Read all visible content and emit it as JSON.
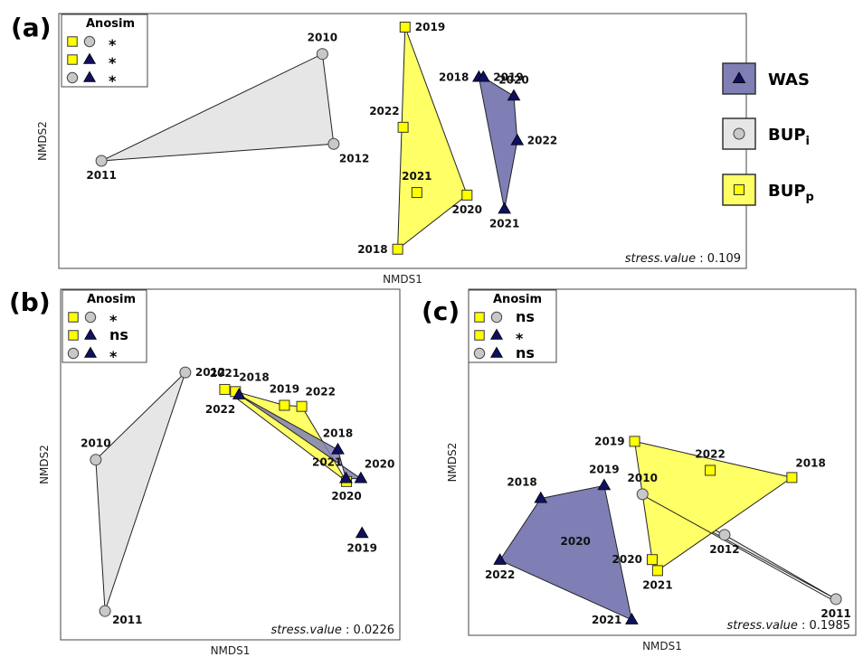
{
  "colors": {
    "WAS": "#7f7fb6",
    "BUP_i": "#e6e6e6",
    "BUP_p": "#ffff66",
    "triangle": "#101060",
    "circle": "#c8c8c8",
    "square": "#ffff00"
  },
  "legend": {
    "items": [
      {
        "label": "WAS",
        "marker": "triangle"
      },
      {
        "label": "BUP",
        "sub": "i",
        "marker": "circle"
      },
      {
        "label": "BUP",
        "sub": "p",
        "marker": "square"
      }
    ]
  },
  "chart_data": [
    {
      "type": "scatter",
      "panel_label": "(a)",
      "xlabel": "NMDS1",
      "ylabel": "NMDS2",
      "stress_label": "stress.value",
      "stress_value": "0.109",
      "xlim": [
        0,
        100
      ],
      "ylim": [
        0,
        100
      ],
      "anosim": {
        "title": "Anosim",
        "rows": [
          {
            "markers": [
              "square",
              "circle"
            ],
            "sig": "*"
          },
          {
            "markers": [
              "square",
              "triangle"
            ],
            "sig": "*"
          },
          {
            "markers": [
              "circle",
              "triangle"
            ],
            "sig": "*"
          }
        ]
      },
      "series": [
        {
          "name": "BUPi",
          "marker": "circle",
          "hull": [
            0,
            2,
            1
          ],
          "points": [
            {
              "year": "2010",
              "x": 48.6,
              "y": 88.4,
              "label_pos": "above"
            },
            {
              "year": "2011",
              "x": 3.7,
              "y": 42.2,
              "label_pos": "below"
            },
            {
              "year": "2012",
              "x": 50.9,
              "y": 49.5,
              "label_pos": "below-right"
            }
          ]
        },
        {
          "name": "BUPp",
          "marker": "square",
          "hull": [
            0,
            3,
            4
          ],
          "points": [
            {
              "year": "2019",
              "x": 65.4,
              "y": 100.0,
              "label_pos": "right"
            },
            {
              "year": "2022",
              "x": 65.0,
              "y": 56.7,
              "label_pos": "above-left"
            },
            {
              "year": "2021",
              "x": 67.8,
              "y": 28.5,
              "label_pos": "above"
            },
            {
              "year": "2020",
              "x": 78.0,
              "y": 27.4,
              "label_pos": "below"
            },
            {
              "year": "2018",
              "x": 63.9,
              "y": 4.0,
              "label_pos": "left"
            }
          ]
        },
        {
          "name": "WAS",
          "marker": "triangle",
          "hull": [
            0,
            1,
            2,
            3,
            4
          ],
          "points": [
            {
              "year": "2018",
              "x": 80.4,
              "y": 78.3,
              "label_pos": "left"
            },
            {
              "year": "2019",
              "x": 81.3,
              "y": 78.3,
              "label_pos": "right"
            },
            {
              "year": "2020",
              "x": 87.5,
              "y": 70.2,
              "label_pos": "above"
            },
            {
              "year": "2022",
              "x": 88.2,
              "y": 50.9,
              "label_pos": "right"
            },
            {
              "year": "2021",
              "x": 85.6,
              "y": 21.3,
              "label_pos": "below"
            }
          ]
        }
      ]
    },
    {
      "type": "scatter",
      "panel_label": "(b)",
      "xlabel": "NMDS1",
      "ylabel": "NMDS2",
      "stress_label": "stress.value",
      "stress_value": "0.0226",
      "xlim": [
        0,
        100
      ],
      "ylim": [
        0,
        100
      ],
      "anosim": {
        "title": "Anosim",
        "rows": [
          {
            "markers": [
              "square",
              "circle"
            ],
            "sig": "*"
          },
          {
            "markers": [
              "square",
              "triangle"
            ],
            "sig": "ns"
          },
          {
            "markers": [
              "circle",
              "triangle"
            ],
            "sig": "*"
          }
        ]
      },
      "series": [
        {
          "name": "BUPi",
          "marker": "circle",
          "hull": [
            0,
            1,
            2
          ],
          "points": [
            {
              "year": "2012",
              "x": 34.2,
              "y": 92.9,
              "label_pos": "right"
            },
            {
              "year": "2010",
              "x": 4.2,
              "y": 60.5,
              "label_pos": "above"
            },
            {
              "year": "2011",
              "x": 7.3,
              "y": 4.3,
              "label_pos": "right-below"
            }
          ]
        },
        {
          "name": "BUPp",
          "marker": "square",
          "hull": [
            0,
            1,
            2,
            3,
            4
          ],
          "points": [
            {
              "year": "2021",
              "x": 47.4,
              "y": 86.6,
              "label_pos": "above"
            },
            {
              "year": "2018",
              "x": 51.0,
              "y": 85.8,
              "label_pos": "above-right"
            },
            {
              "year": "2019",
              "x": 67.4,
              "y": 80.7,
              "label_pos": "above"
            },
            {
              "year": "2022",
              "x": 73.2,
              "y": 80.3,
              "label_pos": "above-right"
            },
            {
              "year": "2020",
              "x": 88.2,
              "y": 52.4,
              "label_pos": "below"
            }
          ]
        },
        {
          "name": "WAS",
          "marker": "triangle",
          "hull": [
            0,
            1,
            3,
            2
          ],
          "points": [
            {
              "year": "2022",
              "x": 52.2,
              "y": 84.6,
              "label_pos": "below-left"
            },
            {
              "year": "2018",
              "x": 85.3,
              "y": 64.2,
              "label_pos": "above"
            },
            {
              "year": "2020",
              "x": 93.0,
              "y": 53.5,
              "label_pos": "above-right"
            },
            {
              "year": "2021",
              "x": 88.0,
              "y": 53.5,
              "label_pos": "above-left"
            },
            {
              "year": "2019",
              "x": 93.4,
              "y": 33.1,
              "label_pos": "below"
            }
          ]
        }
      ]
    },
    {
      "type": "scatter",
      "panel_label": "(c)",
      "xlabel": "NMDS1",
      "ylabel": "NMDS2",
      "stress_label": "stress.value",
      "stress_value": "0.1985",
      "xlim": [
        0,
        100
      ],
      "ylim": [
        0,
        100
      ],
      "anosim": {
        "title": "Anosim",
        "rows": [
          {
            "markers": [
              "square",
              "circle"
            ],
            "sig": "ns"
          },
          {
            "markers": [
              "square",
              "triangle"
            ],
            "sig": "*"
          },
          {
            "markers": [
              "circle",
              "triangle"
            ],
            "sig": "ns"
          }
        ]
      },
      "series": [
        {
          "name": "BUPi",
          "marker": "circle",
          "hull": [
            0,
            1,
            2
          ],
          "points": [
            {
              "year": "2010",
              "x": 43.5,
              "y": 60.3,
              "label_pos": "above"
            },
            {
              "year": "2012",
              "x": 66.4,
              "y": 41.1,
              "label_pos": "below"
            },
            {
              "year": "2011",
              "x": 97.5,
              "y": 10.7,
              "label_pos": "below"
            }
          ]
        },
        {
          "name": "BUPp",
          "marker": "square",
          "hull": [
            0,
            2,
            4,
            3
          ],
          "points": [
            {
              "year": "2019",
              "x": 41.3,
              "y": 85.3,
              "label_pos": "left"
            },
            {
              "year": "2022",
              "x": 62.4,
              "y": 71.6,
              "label_pos": "above"
            },
            {
              "year": "2018",
              "x": 85.2,
              "y": 68.2,
              "label_pos": "above-right"
            },
            {
              "year": "2020",
              "x": 46.2,
              "y": 29.4,
              "label_pos": "left"
            },
            {
              "year": "2021",
              "x": 47.7,
              "y": 24.2,
              "label_pos": "below"
            }
          ]
        },
        {
          "name": "WAS",
          "marker": "triangle",
          "hull": [
            0,
            1,
            3,
            2
          ],
          "points": [
            {
              "year": "2019",
              "x": 32.8,
              "y": 64.4,
              "label_pos": "above"
            },
            {
              "year": "2018",
              "x": 15.1,
              "y": 58.3,
              "label_pos": "above-left"
            },
            {
              "year": "2021",
              "x": 40.5,
              "y": 0.9,
              "label_pos": "left"
            },
            {
              "year": "2022",
              "x": 3.7,
              "y": 29.1,
              "label_pos": "below"
            },
            {
              "year": "2020",
              "x": 24.8,
              "y": 38.0,
              "label_pos": "center-only"
            }
          ]
        }
      ]
    }
  ]
}
